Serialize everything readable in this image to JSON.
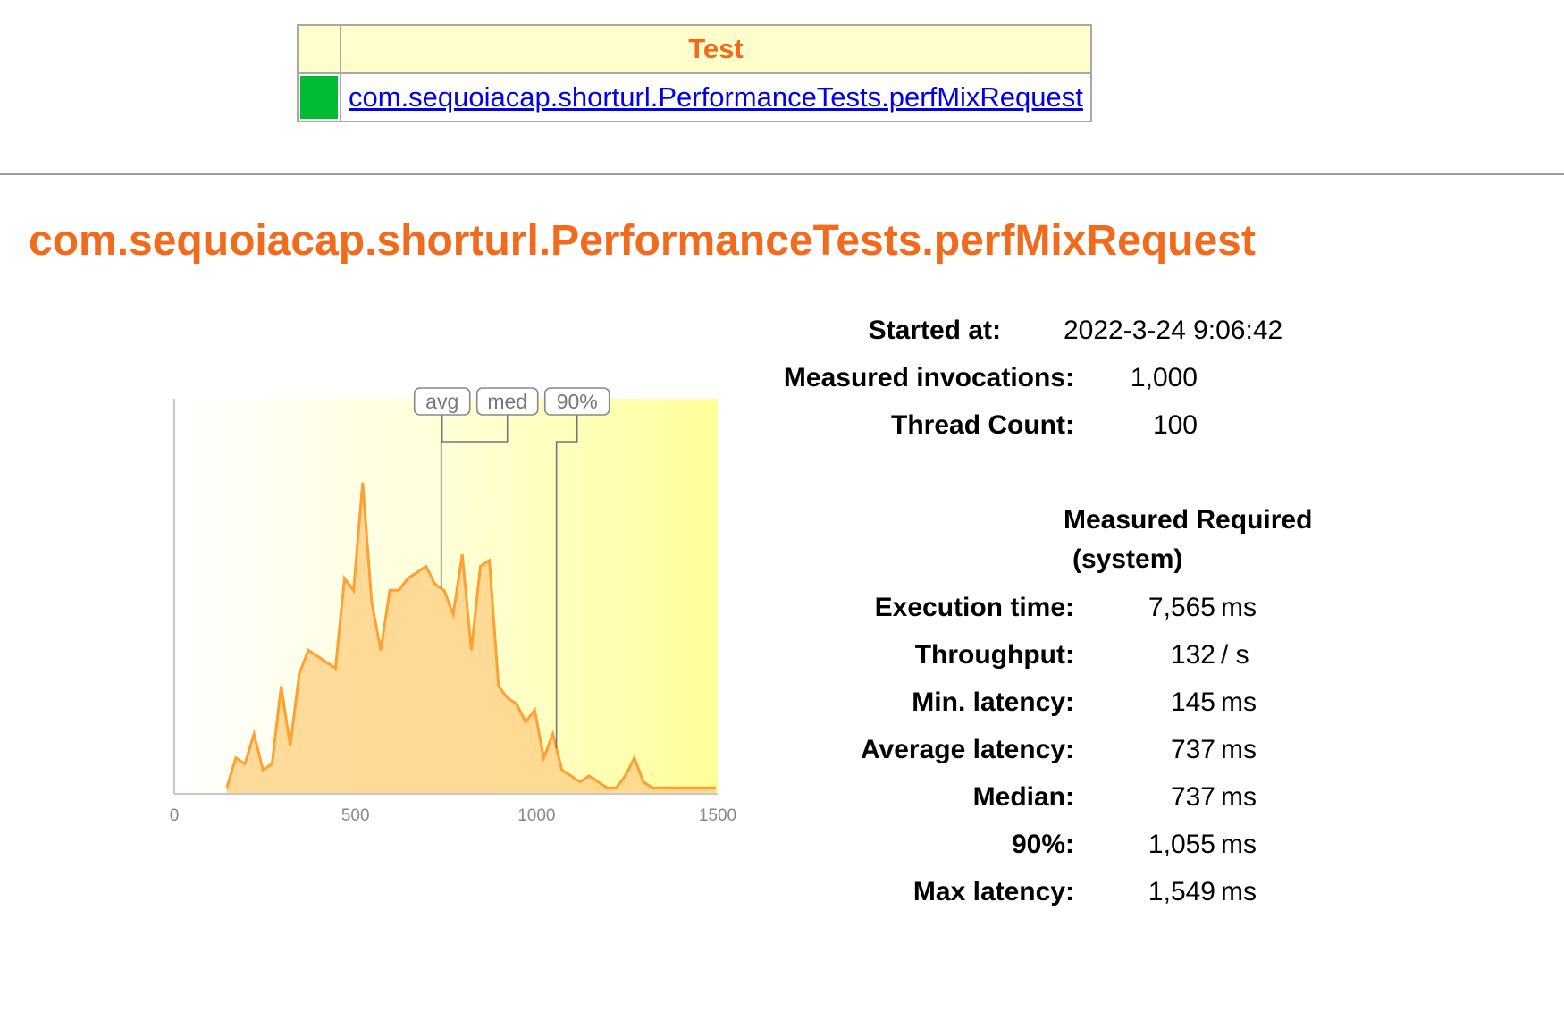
{
  "table": {
    "header_label": "Test",
    "row": {
      "status_color": "#00bb33",
      "test_name": "com.sequoiacap.shorturl.PerformanceTests.perfMixRequest"
    }
  },
  "heading": "com.sequoiacap.shorturl.PerformanceTests.perfMixRequest",
  "stats": {
    "started_label": "Started at:",
    "started_value": "2022-3-24 9:06:42",
    "invocations_label": "Measured invocations:",
    "invocations_value": "1,000",
    "threads_label": "Thread Count:",
    "threads_value": "100",
    "col_header_1": "Measured Required",
    "col_header_2": "(system)",
    "rows": [
      {
        "label": "Execution time:",
        "value": "7,565",
        "unit": "ms"
      },
      {
        "label": "Throughput:",
        "value": "132",
        "unit": "/ s"
      },
      {
        "label": "Min. latency:",
        "value": "145",
        "unit": "ms"
      },
      {
        "label": "Average latency:",
        "value": "737",
        "unit": "ms"
      },
      {
        "label": "Median:",
        "value": "737",
        "unit": "ms"
      },
      {
        "label": "90%:",
        "value": "1,055",
        "unit": "ms"
      },
      {
        "label": "Max latency:",
        "value": "1,549",
        "unit": "ms"
      }
    ]
  },
  "chart_data": {
    "type": "area",
    "xlim": [
      0,
      1500
    ],
    "ylim": [
      0,
      33
    ],
    "x_ticks": [
      0,
      500,
      1000,
      1500
    ],
    "x_tick_labels": [
      "0",
      "500",
      "1000",
      "1500"
    ],
    "markers": [
      {
        "label": "avg",
        "x": 737
      },
      {
        "label": "med",
        "x": 737
      },
      {
        "label": "90%",
        "x": 1055
      }
    ],
    "x": [
      145,
      170,
      195,
      220,
      245,
      270,
      295,
      320,
      345,
      370,
      395,
      420,
      445,
      470,
      495,
      520,
      545,
      570,
      595,
      620,
      645,
      670,
      695,
      720,
      745,
      770,
      795,
      820,
      845,
      870,
      895,
      920,
      945,
      970,
      995,
      1020,
      1045,
      1070,
      1095,
      1120,
      1145,
      1170,
      1195,
      1220,
      1245,
      1270,
      1295,
      1320,
      1345,
      1370,
      1395,
      1420,
      1445,
      1470,
      1495
    ],
    "values": [
      0.5,
      3,
      2.5,
      5,
      2,
      2.5,
      9,
      4,
      10,
      12,
      11.5,
      11,
      10.5,
      18,
      17,
      26,
      16,
      12,
      17,
      17,
      18,
      18.5,
      19,
      17.5,
      17,
      15,
      20,
      12,
      19,
      19.5,
      9,
      8,
      7.5,
      6,
      7,
      3,
      5,
      2,
      1.5,
      1,
      1.5,
      1,
      0.5,
      0.5,
      1.5,
      3,
      1,
      0.5,
      0.5,
      0.5,
      0.5,
      0.5,
      0.5,
      0.5,
      0.5
    ],
    "colors": {
      "line": "#ffa033",
      "fill": "#ffd38a",
      "band_light": "#ffffee",
      "band_dark": "#ffff99"
    }
  }
}
